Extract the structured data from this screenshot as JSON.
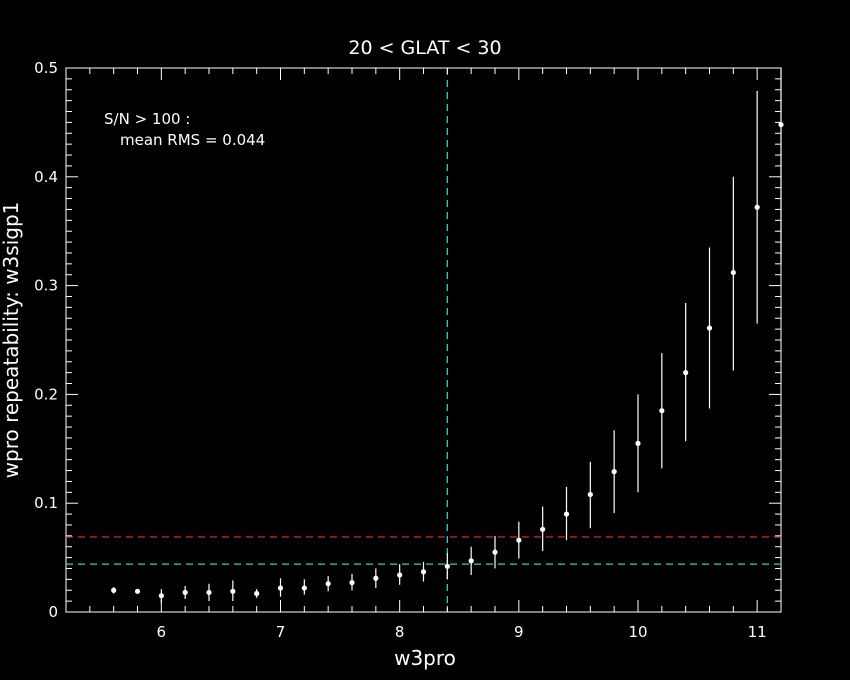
{
  "chart_data": {
    "type": "scatter",
    "title": "20 < GLAT < 30",
    "xlabel": "w3pro",
    "ylabel": "wpro repeatability: w3sigp1",
    "xlim": [
      5.2,
      11.2
    ],
    "ylim": [
      0,
      0.5
    ],
    "xticks": [
      6,
      7,
      8,
      9,
      10,
      11
    ],
    "yticks": [
      0,
      0.1,
      0.2,
      0.3,
      0.4,
      0.5
    ],
    "ytick_labels": [
      "0",
      "0.1",
      "0.2",
      "0.3",
      "0.4",
      "0.5"
    ],
    "grid": false,
    "annotation": {
      "line1": "S/N > 100 :",
      "line2": "mean RMS =  0.044",
      "color": "#33cccc"
    },
    "reference_lines": {
      "vertical_x": 8.4,
      "horizontal_mean": 0.044,
      "horizontal_red": 0.069,
      "cyan_color": "#33cccc",
      "red_color": "#cc2222"
    },
    "series": [
      {
        "marker_color": "#ffffff",
        "points": [
          {
            "x": 5.6,
            "y": 0.02,
            "lo": 0.017,
            "hi": 0.023
          },
          {
            "x": 5.8,
            "y": 0.019,
            "lo": 0.017,
            "hi": 0.021
          },
          {
            "x": 6.0,
            "y": 0.015,
            "lo": 0.008,
            "hi": 0.021
          },
          {
            "x": 6.2,
            "y": 0.018,
            "lo": 0.012,
            "hi": 0.024
          },
          {
            "x": 6.4,
            "y": 0.018,
            "lo": 0.01,
            "hi": 0.026
          },
          {
            "x": 6.6,
            "y": 0.019,
            "lo": 0.01,
            "hi": 0.029
          },
          {
            "x": 6.8,
            "y": 0.017,
            "lo": 0.013,
            "hi": 0.021
          },
          {
            "x": 7.0,
            "y": 0.022,
            "lo": 0.014,
            "hi": 0.031
          },
          {
            "x": 7.2,
            "y": 0.022,
            "lo": 0.016,
            "hi": 0.03
          },
          {
            "x": 7.4,
            "y": 0.026,
            "lo": 0.019,
            "hi": 0.033
          },
          {
            "x": 7.6,
            "y": 0.027,
            "lo": 0.02,
            "hi": 0.035
          },
          {
            "x": 7.8,
            "y": 0.031,
            "lo": 0.022,
            "hi": 0.04
          },
          {
            "x": 8.0,
            "y": 0.034,
            "lo": 0.025,
            "hi": 0.044
          },
          {
            "x": 8.2,
            "y": 0.037,
            "lo": 0.028,
            "hi": 0.046
          },
          {
            "x": 8.4,
            "y": 0.042,
            "lo": 0.03,
            "hi": 0.054
          },
          {
            "x": 8.6,
            "y": 0.047,
            "lo": 0.034,
            "hi": 0.06
          },
          {
            "x": 8.8,
            "y": 0.055,
            "lo": 0.04,
            "hi": 0.07
          },
          {
            "x": 9.0,
            "y": 0.066,
            "lo": 0.049,
            "hi": 0.083
          },
          {
            "x": 9.2,
            "y": 0.076,
            "lo": 0.056,
            "hi": 0.097
          },
          {
            "x": 9.4,
            "y": 0.09,
            "lo": 0.066,
            "hi": 0.115
          },
          {
            "x": 9.6,
            "y": 0.108,
            "lo": 0.077,
            "hi": 0.138
          },
          {
            "x": 9.8,
            "y": 0.129,
            "lo": 0.091,
            "hi": 0.167
          },
          {
            "x": 10.0,
            "y": 0.155,
            "lo": 0.11,
            "hi": 0.2
          },
          {
            "x": 10.2,
            "y": 0.185,
            "lo": 0.132,
            "hi": 0.238
          },
          {
            "x": 10.4,
            "y": 0.22,
            "lo": 0.157,
            "hi": 0.284
          },
          {
            "x": 10.6,
            "y": 0.261,
            "lo": 0.187,
            "hi": 0.335
          },
          {
            "x": 10.8,
            "y": 0.312,
            "lo": 0.222,
            "hi": 0.4
          },
          {
            "x": 11.0,
            "y": 0.372,
            "lo": 0.265,
            "hi": 0.479
          },
          {
            "x": 11.2,
            "y": 0.448,
            "lo": 0.32,
            "hi": 0.5
          }
        ]
      }
    ]
  }
}
